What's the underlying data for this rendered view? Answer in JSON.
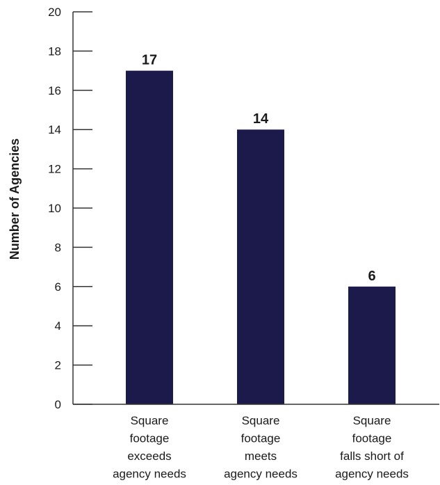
{
  "chart_data": {
    "type": "bar",
    "title": "",
    "xlabel": "",
    "ylabel": "Number of Agencies",
    "ylim": [
      0,
      20
    ],
    "yticks": [
      0,
      2,
      4,
      6,
      8,
      10,
      12,
      14,
      16,
      18,
      20
    ],
    "grid": false,
    "legend": "none",
    "categories": [
      [
        "Square",
        "footage",
        "exceeds",
        "agency needs"
      ],
      [
        "Square",
        "footage",
        "meets",
        "agency needs"
      ],
      [
        "Square",
        "footage",
        "falls short of",
        "agency needs"
      ]
    ],
    "values": [
      17,
      14,
      6
    ],
    "data_labels": [
      "17",
      "14",
      "6"
    ],
    "colors": {
      "bar": "#1c1a4b",
      "axis": "#333333",
      "text": "#1a1a1a"
    }
  }
}
